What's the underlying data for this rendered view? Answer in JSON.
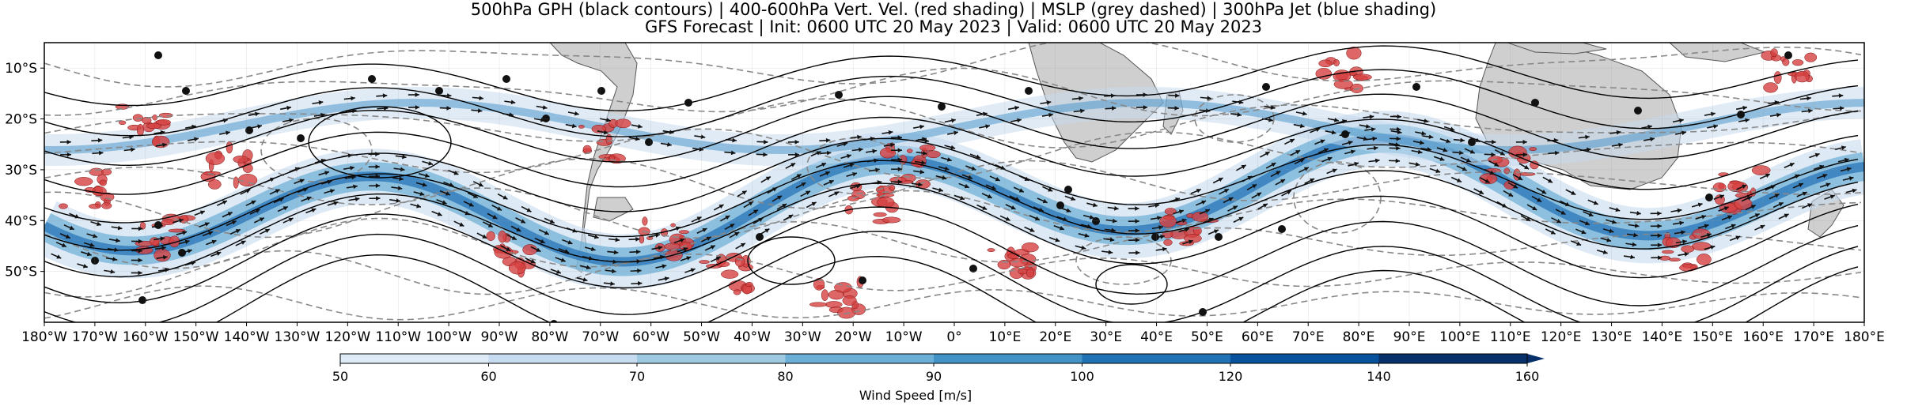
{
  "title_line1": "500hPa GPH (black contours) | 400-600hPa Vert. Vel. (red shading) | MSLP (grey dashed) | 300hPa Jet (blue shading)",
  "title_line2": "GFS Forecast | Init: 0600 UTC 20 May 2023 | Valid: 0600 UTC 20 May 2023",
  "lat_labels": [
    "10°S",
    "20°S",
    "30°S",
    "40°S",
    "50°S"
  ],
  "lat_values": [
    -10,
    -20,
    -30,
    -40,
    -50
  ],
  "lat_range": [
    -60,
    -5
  ],
  "lon_labels": [
    "180°W",
    "170°W",
    "160°W",
    "150°W",
    "140°W",
    "130°W",
    "120°W",
    "110°W",
    "100°W",
    "90°W",
    "80°W",
    "70°W",
    "60°W",
    "50°W",
    "40°W",
    "30°W",
    "20°W",
    "10°W",
    "0°",
    "10°E",
    "20°E",
    "30°E",
    "40°E",
    "50°E",
    "60°E",
    "70°E",
    "80°E",
    "90°E",
    "100°E",
    "110°E",
    "120°E",
    "130°E",
    "140°E",
    "150°E",
    "160°E",
    "170°E",
    "180°E"
  ],
  "colorbar": {
    "label": "Wind Speed [m/s]",
    "ticks": [
      "50",
      "60",
      "70",
      "80",
      "90",
      "100",
      "120",
      "140",
      "160"
    ],
    "colors": [
      "#f7fbff",
      "#deebf7",
      "#c6dbef",
      "#9ecae1",
      "#6baed6",
      "#4292c6",
      "#2171b5",
      "#08519c",
      "#08306b"
    ]
  },
  "colors": {
    "land": "#cfcfcf",
    "coast": "#555555",
    "gph_contour": "#000000",
    "mslp_contour": "#888888",
    "vertical_velocity": "#d64040",
    "jet": "#3a7fc0"
  }
}
